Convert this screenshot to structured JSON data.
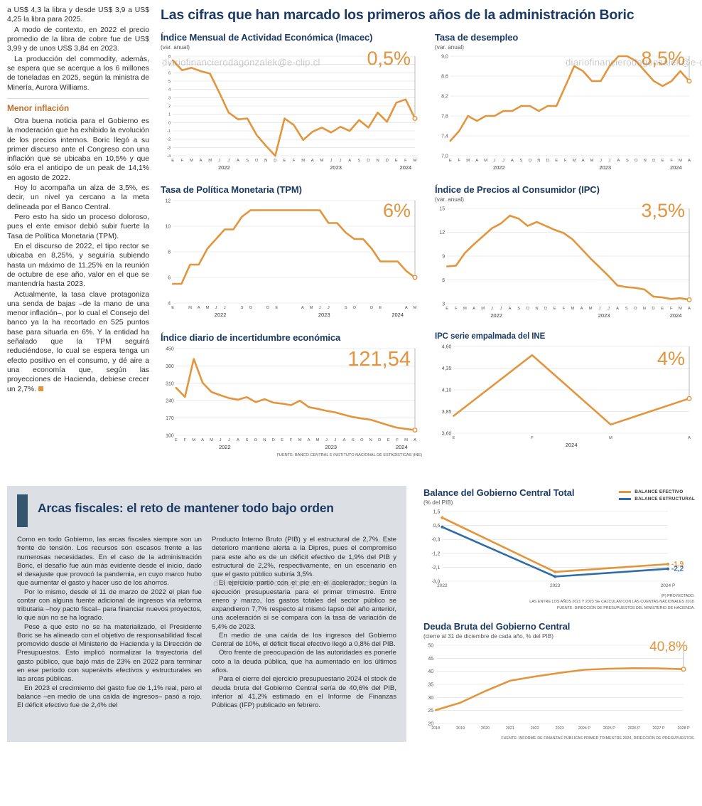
{
  "colors": {
    "accent_orange": "#E2953C",
    "navy": "#1C3A63",
    "line_blue": "#2F6DA8",
    "box_gray": "#DCDFE4",
    "subhead_orange": "#C06F2A"
  },
  "watermark": "diariofinancierodagonzalek@e-clip.cl",
  "main_title": "Las cifras que han marcado los primeros años de la administración Boric",
  "charts_source": "FUENTE: BANCO CENTRAL E INSTITUTO NACIONAL DE ESTADÍSTICAS (INE)",
  "left_article": {
    "paragraphs_top": [
      "a US$ 4,3 la libra y desde US$ 3,9 a US$ 4,25 la libra para 2025.",
      "A modo de contexto, en 2022 el precio promedio de la libra de cobre fue de US$ 3,99 y de unos US$ 3,84 en 2023.",
      "La producción del commodity, además, se espera que se acerque a los 6 millones de toneladas en 2025, según la ministra de Minería, Aurora Williams."
    ],
    "subhead": "Menor inflación",
    "paragraphs_bottom": [
      "Otra buena noticia para el Gobierno es la moderación que ha exhibido la evolución de los precios internos. Boric llegó a su primer discurso ante el Congreso con una inflación que se ubicaba en 10,5% y que sólo era el anticipo de un peak de 14,1% en agosto de 2022.",
      "Hoy lo acompaña un alza de 3,5%, es decir, un nivel ya cercano a la meta delineada por el Banco Central.",
      "Pero esto ha sido un proceso doloroso, pues el ente emisor debió subir fuerte la Tasa de Política Monetaria (TPM).",
      "En el discurso de 2022, el tipo rector se ubicaba en 8,25%, y seguiría subiendo hasta un máximo de 11,25% en la reunión de octubre de ese año, valor en el que se mantendría hasta 2023.",
      "Actualmente, la tasa clave protagoniza una senda de bajas –de la mano de una menor inflación–, por lo cual el Consejo del banco ya la ha recortado en 525 puntos base para situarla en 6%. Y la entidad ha señalado que la TPM seguirá reduciéndose, lo cual se espera tenga un efecto positivo en el consumo, y dé aire a una economía que, según las proyecciones de Hacienda, debiese crecer un 2,7%."
    ]
  },
  "fiscal": {
    "title": "Arcas fiscales: el reto de mantener todo bajo orden",
    "col1": [
      "Como en todo Gobierno, las arcas fiscales siempre son un frente de tensión. Los recursos son escasos frente a las numerosas necesidades. En el caso de la administración Boric, el desafío fue aún más evidente desde el inicio, dado el desajuste que provocó la pandemia, en cuyo marco hubo que aumentar el gasto y hacer uso de los ahorros.",
      "Por lo mismo, desde el 11 de marzo de 2022 el plan fue contar con alguna fuente adicional de ingresos vía reforma tributaria –hoy pacto fiscal– para financiar nuevos proyectos, lo que aún no se ha logrado.",
      "Pese a que esto no se ha materializado, el Presidente Boric se ha alineado con el objetivo de responsabilidad fiscal promovido desde el Ministerio de Hacienda y la Dirección de Presupuestos. Esto implicó normalizar la trayectoria del gasto público, que bajó más de 23% en 2022 para terminar en ese período con superávits efectivos y estructurales en las arcas públicas.",
      "En 2023 el crecimiento del gasto fue de 1,1% real, pero el balance –en medio de una caída de ingresos– pasó a rojo. El déficit efectivo fue de 2,4% del"
    ],
    "col2": [
      "Producto Interno Bruto (PIB) y el estructural de 2,7%. Este deterioro mantiene alerta a la Dipres, pues el compromiso para este año es de un déficit efectivo de 1,9% del PIB y estructural de 2,2%, respectivamente, en un escenario en que el gasto público subiría 3,5%.",
      "El ejercicio partió con el pie en el acelerador, según la ejecución presupuestaria para el primer trimestre. Entre enero y marzo, los gastos totales del sector público se expandieron 7,7% respecto al mismo lapso del año anterior, una aceleración si se compara con la tasa de variación de 5,4% de 2023.",
      "En medio de una caída de los ingresos del Gobierno Central de 10%, el déficit fiscal efectivo llegó a 0,8% del PIB.",
      "Otro frente de preocupación de las autoridades es ponerle coto a la deuda pública, que ha aumentado en los últimos años.",
      "Para el cierre del ejercicio presupuestario 2024 el stock de deuda bruta del Gobierno Central sería de 40,6% del PIB, inferior al 41,2% estimado en el Informe de Finanzas Públicas (IFP) publicado en febrero."
    ]
  },
  "chart_data": [
    {
      "type": "line",
      "title": "Índice Mensual de Actividad Económica (Imacec)",
      "subtitle": "(var. anual)",
      "callout": "0,5%",
      "ylim": [
        -4,
        8
      ],
      "y_ticks": [
        8,
        7,
        6,
        5,
        4,
        3,
        2,
        1,
        0,
        -1,
        -2,
        -3,
        -4
      ],
      "x_labels": [
        "E",
        "F",
        "M",
        "A",
        "M",
        "J",
        "J",
        "A",
        "S",
        "O",
        "N",
        "D",
        "E",
        "F",
        "M",
        "A",
        "M",
        "J",
        "J",
        "A",
        "S",
        "O",
        "N",
        "D",
        "E",
        "F",
        "M"
      ],
      "year_labels": [
        {
          "label": "2022",
          "start": 0,
          "end": 11
        },
        {
          "label": "2023",
          "start": 12,
          "end": 23
        },
        {
          "label": "2024",
          "start": 24,
          "end": 26
        }
      ],
      "callout_line": true,
      "series": [
        {
          "color": "#E2953C",
          "end_marker": true,
          "values": [
            7.5,
            6.3,
            6.6,
            6.2,
            5.9,
            3.6,
            1.2,
            0.4,
            0.5,
            -1.5,
            -2.8,
            -4.0,
            0.5,
            -0.3,
            -2.1,
            -1.1,
            -0.6,
            -1.2,
            -0.5,
            -1.0,
            0.3,
            -0.6,
            1.2,
            0.1,
            2.4,
            2.8,
            0.5
          ]
        }
      ]
    },
    {
      "type": "line",
      "title": "Tasa de desempleo",
      "subtitle": "(var. anual)",
      "callout": "8,5%",
      "ylim": [
        7.0,
        9.0
      ],
      "y_ticks": [
        {
          "v": 9.0,
          "label": "9,0"
        },
        {
          "v": 8.6,
          "label": "8,6"
        },
        {
          "v": 8.2,
          "label": "8,2"
        },
        {
          "v": 7.8,
          "label": "7,8"
        },
        {
          "v": 7.4,
          "label": "7,4"
        },
        {
          "v": 7.0,
          "label": "7,0"
        }
      ],
      "x_labels": [
        "E",
        "F",
        "M",
        "A",
        "M",
        "J",
        "J",
        "A",
        "S",
        "O",
        "N",
        "D",
        "E",
        "F",
        "M",
        "A",
        "M",
        "J",
        "J",
        "A",
        "S",
        "O",
        "N",
        "D",
        "E",
        "F",
        "M",
        "A"
      ],
      "year_labels": [
        {
          "label": "2022",
          "start": 0,
          "end": 11
        },
        {
          "label": "2023",
          "start": 12,
          "end": 23
        },
        {
          "label": "2024",
          "start": 24,
          "end": 27
        }
      ],
      "callout_line": true,
      "series": [
        {
          "color": "#E2953C",
          "end_marker": true,
          "values": [
            7.3,
            7.5,
            7.8,
            7.7,
            7.8,
            7.8,
            7.9,
            7.9,
            8.0,
            8.0,
            7.9,
            8.0,
            8.0,
            8.4,
            8.8,
            8.7,
            8.5,
            8.5,
            8.8,
            9.0,
            9.0,
            8.9,
            8.7,
            8.5,
            8.4,
            8.5,
            8.7,
            8.5
          ]
        }
      ]
    },
    {
      "type": "line",
      "title": "Tasa de Política Monetaria (TPM)",
      "callout": "6%",
      "ylim": [
        4,
        12
      ],
      "y_ticks": [
        12,
        10,
        8,
        6,
        4
      ],
      "x_labels": [
        "E",
        "",
        "M",
        "A",
        "M",
        "J",
        "J",
        "",
        "S",
        "O",
        "",
        "D",
        "E",
        "",
        "",
        "A",
        "M",
        "J",
        "J",
        "",
        "S",
        "O",
        "",
        "D",
        "E",
        "",
        "",
        "A",
        "M"
      ],
      "year_labels": [
        {
          "label": "2022",
          "start": 0,
          "end": 11
        },
        {
          "label": "2023",
          "start": 12,
          "end": 23
        },
        {
          "label": "2024",
          "start": 24,
          "end": 28
        }
      ],
      "callout_line": true,
      "series": [
        {
          "color": "#E2953C",
          "end_marker": true,
          "values": [
            5.5,
            5.5,
            7.0,
            7.0,
            8.25,
            9.0,
            9.75,
            9.75,
            10.75,
            11.25,
            11.25,
            11.25,
            11.25,
            11.25,
            11.25,
            11.25,
            11.25,
            11.25,
            10.25,
            10.25,
            9.5,
            9.0,
            9.0,
            8.25,
            7.25,
            7.25,
            7.25,
            6.5,
            6.0
          ]
        }
      ]
    },
    {
      "type": "line",
      "title": "Índice de Precios al Consumidor (IPC)",
      "subtitle": "(var. anual)",
      "callout": "3,5%",
      "ylim": [
        3,
        15
      ],
      "y_ticks": [
        15,
        12,
        9,
        6,
        3
      ],
      "x_labels": [
        "E",
        "F",
        "M",
        "A",
        "M",
        "J",
        "J",
        "A",
        "S",
        "O",
        "N",
        "D",
        "E",
        "F",
        "M",
        "A",
        "M",
        "J",
        "J",
        "A",
        "S",
        "O",
        "N",
        "D",
        "E",
        "F",
        "M",
        "A"
      ],
      "year_labels": [
        {
          "label": "2022",
          "start": 0,
          "end": 11
        },
        {
          "label": "2023",
          "start": 12,
          "end": 23
        },
        {
          "label": "2024",
          "start": 24,
          "end": 27
        }
      ],
      "callout_line": true,
      "series": [
        {
          "color": "#E2953C",
          "end_marker": true,
          "values": [
            7.7,
            7.8,
            9.4,
            10.5,
            11.5,
            12.5,
            13.1,
            14.1,
            13.7,
            12.8,
            13.3,
            12.8,
            12.3,
            11.9,
            11.1,
            9.9,
            8.7,
            7.6,
            6.5,
            5.3,
            5.1,
            5.0,
            4.8,
            3.9,
            3.8,
            3.6,
            3.7,
            3.5
          ]
        }
      ]
    },
    {
      "type": "line",
      "title": "Índice diario de incertidumbre económica",
      "callout": "121,54",
      "ylim": [
        100,
        450
      ],
      "y_ticks": [
        450,
        380,
        310,
        240,
        170,
        100
      ],
      "x_labels": [
        "E",
        "F",
        "M",
        "A",
        "M",
        "J",
        "J",
        "A",
        "S",
        "O",
        "N",
        "D",
        "E",
        "F",
        "M",
        "A",
        "M",
        "J",
        "J",
        "A",
        "S",
        "O",
        "N",
        "D",
        "E",
        "F",
        "M",
        "A"
      ],
      "year_labels": [
        {
          "label": "2022",
          "start": 0,
          "end": 11
        },
        {
          "label": "2023",
          "start": 12,
          "end": 23
        },
        {
          "label": "2024",
          "start": 24,
          "end": 27
        }
      ],
      "callout_line": true,
      "series": [
        {
          "color": "#E2953C",
          "end_marker": true,
          "values": [
            292,
            255,
            408,
            312,
            275,
            262,
            250,
            244,
            254,
            234,
            246,
            232,
            228,
            222,
            240,
            214,
            207,
            199,
            193,
            183,
            174,
            168,
            163,
            152,
            141,
            131,
            126,
            121.54
          ]
        }
      ]
    },
    {
      "type": "line",
      "title": "IPC serie empalmada del INE",
      "callout": "4%",
      "ylim": [
        3.6,
        4.6
      ],
      "y_ticks": [
        {
          "v": 4.6,
          "label": "4,60"
        },
        {
          "v": 4.35,
          "label": "4,35"
        },
        {
          "v": 4.1,
          "label": "4,10"
        },
        {
          "v": 3.85,
          "label": "3,85"
        },
        {
          "v": 3.6,
          "label": "3,60"
        }
      ],
      "x_labels": [
        "E",
        "F",
        "M",
        "A"
      ],
      "year_labels": [
        {
          "label": "2024",
          "start": 0,
          "end": 3
        }
      ],
      "callout_line": true,
      "series": [
        {
          "color": "#E2953C",
          "end_marker": true,
          "values": [
            3.8,
            4.5,
            3.7,
            4.0
          ]
        }
      ]
    },
    {
      "type": "line",
      "title": "Balance del Gobierno Central Total",
      "subtitle": "(% del PIB)",
      "ylim": [
        -3.0,
        1.5
      ],
      "y_ticks": [
        {
          "v": 1.5,
          "label": "1,5"
        },
        {
          "v": 0.6,
          "label": "0,6"
        },
        {
          "v": -0.3,
          "label": "-0,3"
        },
        {
          "v": -1.2,
          "label": "-1,2"
        },
        {
          "v": -2.1,
          "label": "-2,1"
        },
        {
          "v": -3.0,
          "label": "-3,0"
        }
      ],
      "x_labels": [
        "2022",
        "2023",
        "2024 P"
      ],
      "series": [
        {
          "name": "BALANCE EFECTIVO",
          "color": "#E2953C",
          "markers": true,
          "end_label": "-1,9",
          "values": [
            1.1,
            -2.4,
            -1.9
          ]
        },
        {
          "name": "BALANCE ESTRUCTURAL",
          "color": "#2F6DA8",
          "markers": true,
          "end_label": "-2,2",
          "values": [
            0.5,
            -2.7,
            -2.2
          ]
        }
      ],
      "footnotes": [
        "(P) PROYECTADO.",
        "LAS ENTRE LOS AÑOS 2021 Y 2023 SE CALCULAN CON LAS CUENTAS NACIONALES 2018.",
        "FUENTE: DIRECCIÓN DE PRESUPUESTOS DEL MINISTERIO DE HACIENDA."
      ]
    },
    {
      "type": "line",
      "title": "Deuda Bruta del Gobierno Central",
      "subtitle": "(cierre al 31 de diciembre de cada año, % del PIB)",
      "callout": "40,8%",
      "ylim": [
        20,
        50
      ],
      "y_ticks": [
        50,
        45,
        40,
        35,
        30,
        25,
        20
      ],
      "x_labels": [
        "2018",
        "2019",
        "2020",
        "2021",
        "2022",
        "2023",
        "2024 P",
        "2025 P",
        "2026 P",
        "2027 P",
        "2028 P"
      ],
      "callout_line": true,
      "series": [
        {
          "color": "#E2953C",
          "end_marker": true,
          "values": [
            25.1,
            28.0,
            32.4,
            36.4,
            38.0,
            39.4,
            40.6,
            41.0,
            41.2,
            41.1,
            40.8
          ]
        }
      ],
      "footnote": "FUENTE: INFORME DE FINANZAS PÚBLICAS PRIMER TRIMESTRE 2024, DIRECCIÓN DE PRESUPUESTOS."
    }
  ]
}
